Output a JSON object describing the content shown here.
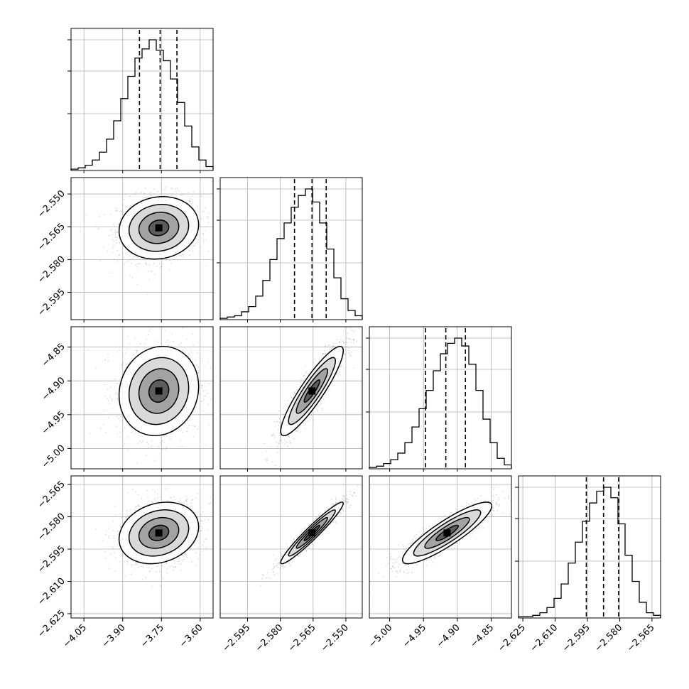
{
  "figure": {
    "type": "corner-plot",
    "parameter_count": 4,
    "colors": {
      "line": "#000000",
      "grid": "#b0b0b0",
      "background": "#ffffff",
      "scatter": "#9a9a9a"
    },
    "grid": true
  },
  "chart_data": {
    "type": "corner",
    "quantile_lines": "dashed",
    "params": [
      {
        "range": [
          -4.1,
          -3.55
        ],
        "ticks": [
          -4.05,
          -3.9,
          -3.75,
          -3.6
        ],
        "tick_labels": [
          "−4.05",
          "−3.90",
          "−3.75",
          "−3.60"
        ],
        "mean": -3.76,
        "sd": 0.07,
        "quantiles": [
          -3.835,
          -3.755,
          -3.69
        ]
      },
      {
        "range": [
          -2.6075,
          -2.5425
        ],
        "ticks": [
          -2.595,
          -2.58,
          -2.565,
          -2.55
        ],
        "tick_labels": [
          "−2.595",
          "−2.580",
          "−2.565",
          "−2.550"
        ],
        "mean": -2.5655,
        "sd": 0.0065,
        "quantiles": [
          -2.5735,
          -2.5655,
          -2.559
        ]
      },
      {
        "range": [
          -5.03,
          -4.82
        ],
        "ticks": [
          -5.0,
          -4.95,
          -4.9,
          -4.85
        ],
        "tick_labels": [
          "−5.00",
          "−4.95",
          "−4.90",
          "−4.85"
        ],
        "mean": -4.915,
        "sd": 0.03,
        "quantiles": [
          -4.947,
          -4.917,
          -4.888
        ]
      },
      {
        "range": [
          -2.627,
          -2.561
        ],
        "ticks": [
          -2.625,
          -2.61,
          -2.595,
          -2.58,
          -2.565
        ],
        "tick_labels": [
          "−2.625",
          "−2.610",
          "−2.595",
          "−2.580",
          "−2.565"
        ],
        "mean": -2.5875,
        "sd": 0.0065,
        "quantiles": [
          -2.5955,
          -2.5875,
          -2.5805
        ]
      }
    ],
    "histograms": [
      [
        1,
        2,
        4,
        8,
        14,
        24,
        38,
        55,
        72,
        86,
        93,
        100,
        92,
        84,
        70,
        52,
        34,
        18,
        8,
        3
      ],
      [
        1,
        2,
        3,
        6,
        10,
        18,
        30,
        46,
        62,
        74,
        86,
        95,
        100,
        90,
        74,
        54,
        32,
        16,
        7,
        3
      ],
      [
        1,
        2,
        4,
        7,
        12,
        20,
        32,
        46,
        60,
        75,
        88,
        96,
        100,
        94,
        80,
        60,
        38,
        20,
        8,
        3
      ],
      [
        1,
        1,
        2,
        4,
        8,
        15,
        26,
        42,
        58,
        74,
        88,
        97,
        100,
        92,
        72,
        48,
        28,
        12,
        4,
        2
      ]
    ],
    "correlations": [
      [
        1,
        0.1,
        0.1,
        0.2
      ],
      [
        0.1,
        1,
        0.9,
        0.96
      ],
      [
        0.1,
        0.9,
        1,
        0.88
      ],
      [
        0.2,
        0.96,
        0.88,
        1
      ]
    ],
    "contour_sigmas": [
      0.5,
      1.0,
      1.5,
      2.0
    ]
  }
}
